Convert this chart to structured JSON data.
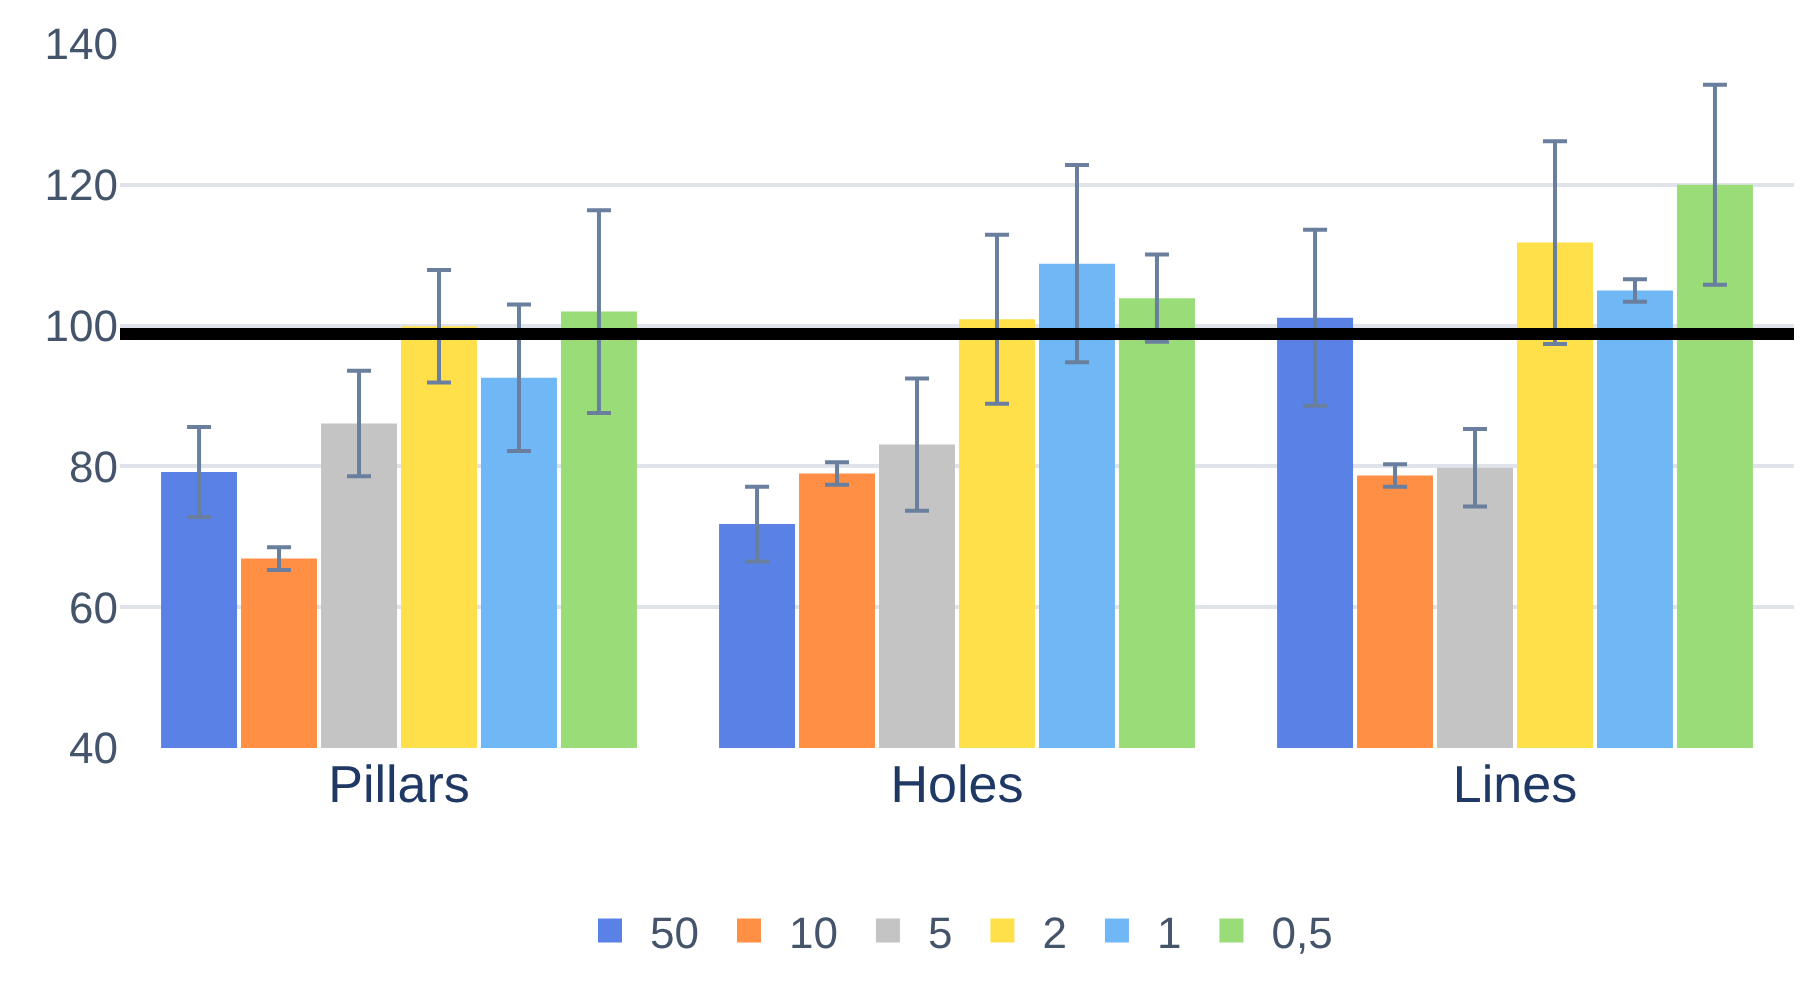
{
  "chart_data": {
    "type": "bar",
    "categories": [
      "Pillars",
      "Holes",
      "Lines"
    ],
    "series": [
      {
        "name": "50",
        "color": "#5a82e6",
        "values": [
          79.2,
          71.8,
          101.1
        ],
        "errors": [
          6.4,
          5.3,
          12.5
        ]
      },
      {
        "name": "10",
        "color": "#ff8f45",
        "values": [
          66.9,
          79.0,
          78.7
        ],
        "errors": [
          1.6,
          1.6,
          1.6
        ]
      },
      {
        "name": "5",
        "color": "#c4c4c4",
        "values": [
          86.1,
          83.1,
          79.8
        ],
        "errors": [
          7.5,
          9.4,
          5.5
        ]
      },
      {
        "name": "2",
        "color": "#ffe04a",
        "values": [
          99.9,
          100.9,
          111.8
        ],
        "errors": [
          8,
          12,
          14.4
        ]
      },
      {
        "name": "1",
        "color": "#70b8f5",
        "values": [
          92.6,
          108.8,
          105.0
        ],
        "errors": [
          10.4,
          14,
          1.6
        ]
      },
      {
        "name": "0,5",
        "color": "#99dc78",
        "values": [
          102.0,
          103.9,
          120.0
        ],
        "errors": [
          14.4,
          6.2,
          14.2
        ]
      }
    ],
    "ylim": [
      40,
      140
    ],
    "yticks": [
      40,
      60,
      80,
      100,
      120,
      140
    ],
    "grid": "y",
    "legend": "bottom",
    "ref_lines": [
      {
        "axis": "y",
        "value": 98.8,
        "color": "#000000",
        "line_style": "solid"
      }
    ]
  }
}
